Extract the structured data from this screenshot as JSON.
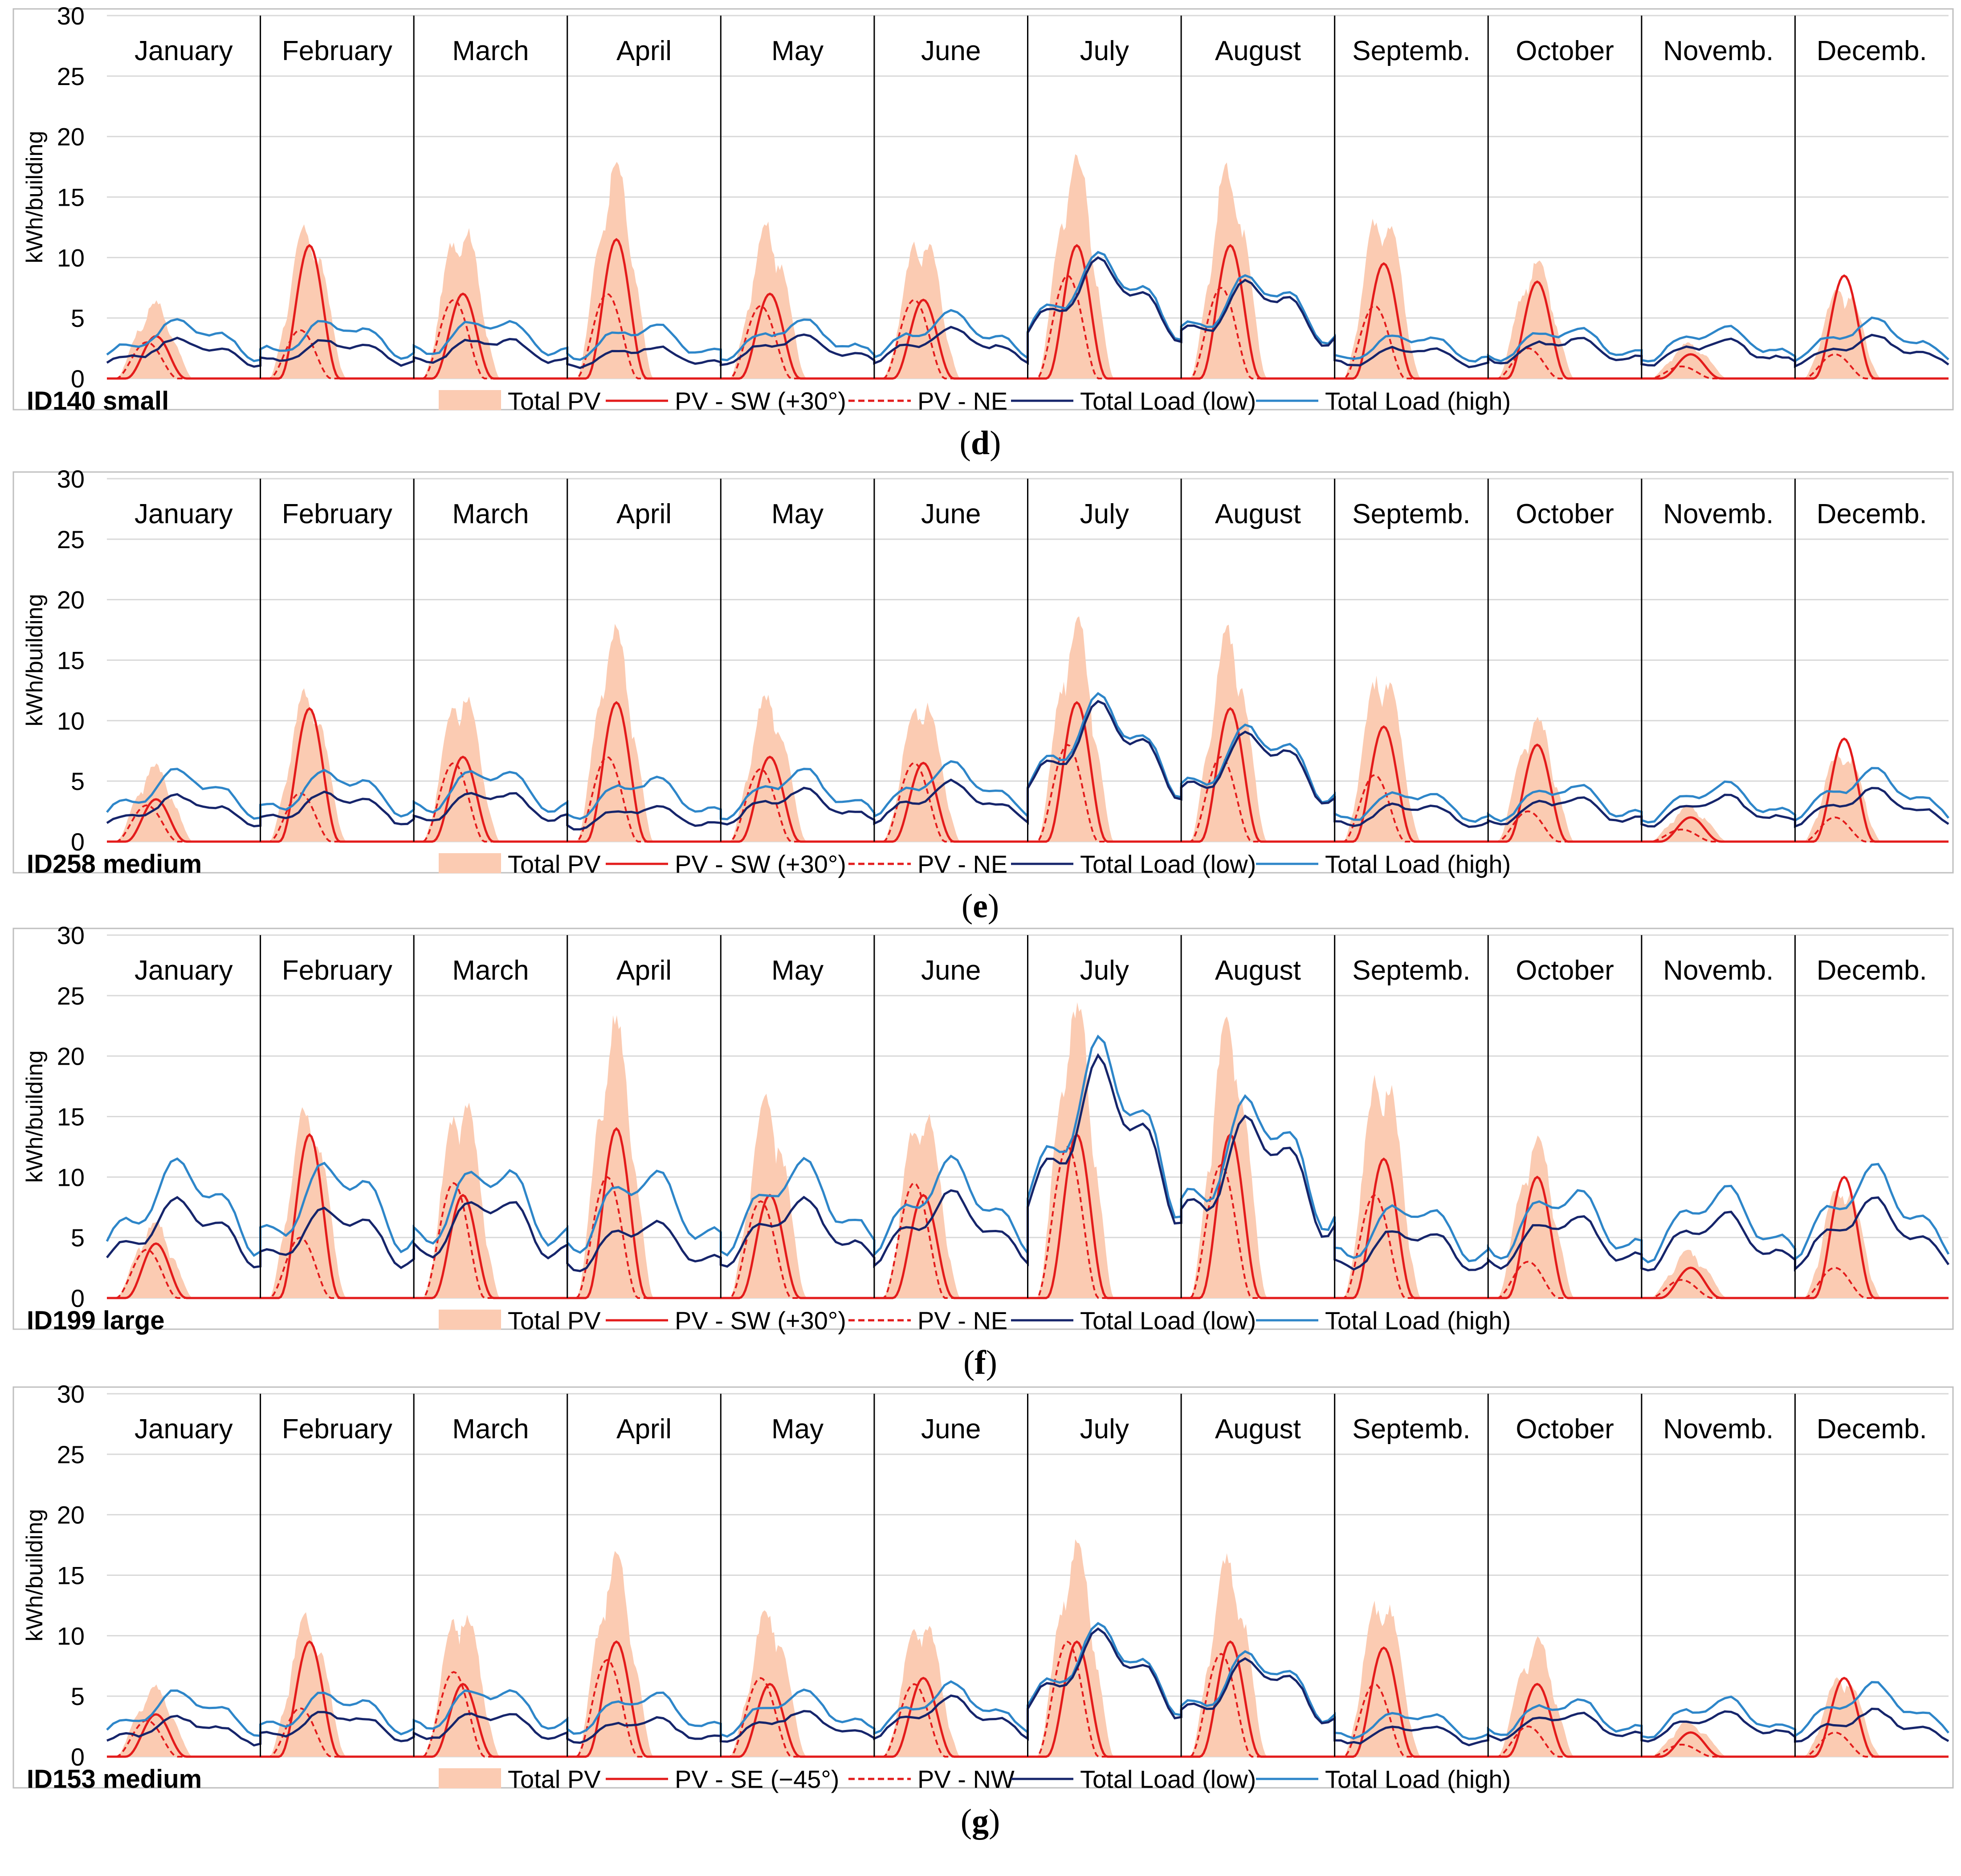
{
  "figure": {
    "months": [
      "January",
      "February",
      "March",
      "April",
      "May",
      "June",
      "July",
      "August",
      "Septemb.",
      "October",
      "Novemb.",
      "Decemb."
    ],
    "ylabel": "kWh/building",
    "yticks": [
      0,
      5,
      10,
      15,
      20,
      25,
      30
    ],
    "colors": {
      "total_pv": "#fbcbb2",
      "pv_primary": "#e31b1b",
      "pv_secondary": "#e31b1b",
      "load_low": "#16256b",
      "load_high": "#2e86c9",
      "grid": "#d9d9d9",
      "separator": "#000000",
      "frame": "#bfbfbf"
    }
  },
  "chart_data": [
    {
      "type": "area",
      "panel_label": "d",
      "building": "ID140 small",
      "ylim": [
        0,
        30
      ],
      "legend": [
        "Total PV",
        "PV - SW (+30°)",
        "PV - NE",
        "Total Load (low)",
        "Total Load (high)"
      ],
      "pv_month_peaks": [
        6.5,
        13,
        13.5,
        18,
        13,
        12.5,
        19,
        18,
        15,
        10,
        3,
        8
      ],
      "pv_primary_peaks": [
        3.5,
        11,
        7,
        11.5,
        7,
        6.5,
        11,
        11,
        9.5,
        8,
        2,
        8.5
      ],
      "pv_secondary_peaks": [
        3,
        4,
        6.5,
        7,
        6,
        6.5,
        8.5,
        7.5,
        6,
        2.5,
        1,
        2
      ],
      "load_low_levels": [
        3.0,
        3.0,
        3.2,
        2.5,
        3.3,
        3.8,
        9.0,
        7.5,
        2.5,
        3.2,
        3.0,
        3.2
      ],
      "load_high_levels": [
        4.5,
        4.5,
        4.7,
        4.2,
        4.5,
        5.0,
        9.5,
        8.0,
        3.5,
        4.0,
        4.0,
        4.5
      ],
      "legend_labels": [
        "Total PV",
        "PV - SW (+30°)",
        "PV - NE",
        "Total Load (low)",
        "Total Load (high)"
      ]
    },
    {
      "type": "area",
      "panel_label": "e",
      "building": "ID258 medium",
      "ylim": [
        0,
        30
      ],
      "legend": [
        "Total PV",
        "PV - SW (+30°)",
        "PV - NE",
        "Total Load (low)",
        "Total Load (high)"
      ],
      "pv_month_peaks": [
        6.5,
        13,
        13,
        18,
        12.5,
        12.5,
        19,
        18,
        15,
        10.5,
        3,
        8
      ],
      "pv_primary_peaks": [
        3.5,
        11,
        7,
        11.5,
        7,
        6.5,
        11.5,
        11,
        9.5,
        8,
        2,
        8.5
      ],
      "pv_secondary_peaks": [
        3,
        4,
        6.5,
        7,
        6,
        6.5,
        8,
        7,
        5.5,
        2.5,
        1,
        2
      ],
      "load_low_levels": [
        3.5,
        3.8,
        4.0,
        2.8,
        4.0,
        4.5,
        10.5,
        8.5,
        3.0,
        3.5,
        3.5,
        4.0
      ],
      "load_high_levels": [
        5.5,
        5.5,
        5.8,
        5.0,
        5.5,
        6.0,
        11.0,
        9.0,
        4.0,
        4.5,
        4.5,
        5.5
      ],
      "legend_labels": [
        "Total PV",
        "PV - SW (+30°)",
        "PV - NE",
        "Total Load (low)",
        "Total Load (high)"
      ]
    },
    {
      "type": "area",
      "panel_label": "f",
      "building": "ID199 large",
      "ylim": [
        0,
        30
      ],
      "legend": [
        "Total PV",
        "PV - SW (+30°)",
        "PV - NE",
        "Total Load (low)",
        "Total Load (high)"
      ],
      "pv_month_peaks": [
        6.5,
        16.5,
        17.5,
        23.5,
        17,
        16.5,
        25,
        23.5,
        20,
        13.5,
        4,
        10
      ],
      "pv_primary_peaks": [
        4.5,
        13.5,
        8.5,
        14,
        8.5,
        8.5,
        13.5,
        13.5,
        11.5,
        10,
        2.5,
        10
      ],
      "pv_secondary_peaks": [
        4,
        5,
        9.5,
        10,
        8,
        9.5,
        12.5,
        11,
        8.5,
        3,
        1.5,
        2.5
      ],
      "load_low_levels": [
        7.5,
        7.0,
        8.0,
        6.0,
        7.5,
        8.0,
        18.0,
        14.0,
        5.5,
        6.5,
        6.5,
        7.5
      ],
      "load_high_levels": [
        10.5,
        10.5,
        10.5,
        10.0,
        10.5,
        10.5,
        19.5,
        15.5,
        7.5,
        8.5,
        8.5,
        10.0
      ],
      "legend_labels": [
        "Total PV",
        "PV - SW (+30°)",
        "PV - NE",
        "Total Load (low)",
        "Total Load (high)"
      ]
    },
    {
      "type": "area",
      "panel_label": "g",
      "building": "ID153 medium",
      "ylim": [
        0,
        30
      ],
      "legend": [
        "Total PV",
        "PV - SE (−45°)",
        "PV - NW",
        "Total Load (low)",
        "Total Load (high)"
      ],
      "pv_month_peaks": [
        6,
        12,
        13,
        17,
        12.5,
        12,
        18,
        17,
        14,
        10,
        3,
        7
      ],
      "pv_primary_peaks": [
        3.5,
        9.5,
        6,
        9.5,
        6,
        6.5,
        9.5,
        9.5,
        9,
        6,
        2,
        6.5
      ],
      "pv_secondary_peaks": [
        3,
        4,
        7,
        8,
        6.5,
        6,
        9.5,
        8.5,
        6,
        2.5,
        1,
        2
      ],
      "load_low_levels": [
        3.0,
        3.5,
        3.5,
        3.0,
        3.5,
        4.5,
        9.5,
        7.5,
        2.5,
        3.5,
        3.5,
        3.5
      ],
      "load_high_levels": [
        5.0,
        5.0,
        5.5,
        5.0,
        5.0,
        5.5,
        10.0,
        8.0,
        3.5,
        4.5,
        4.5,
        5.5
      ],
      "legend_labels": [
        "Total PV",
        "PV - SE (−45°)",
        "PV - NW",
        "Total Load (low)",
        "Total Load (high)"
      ]
    }
  ]
}
